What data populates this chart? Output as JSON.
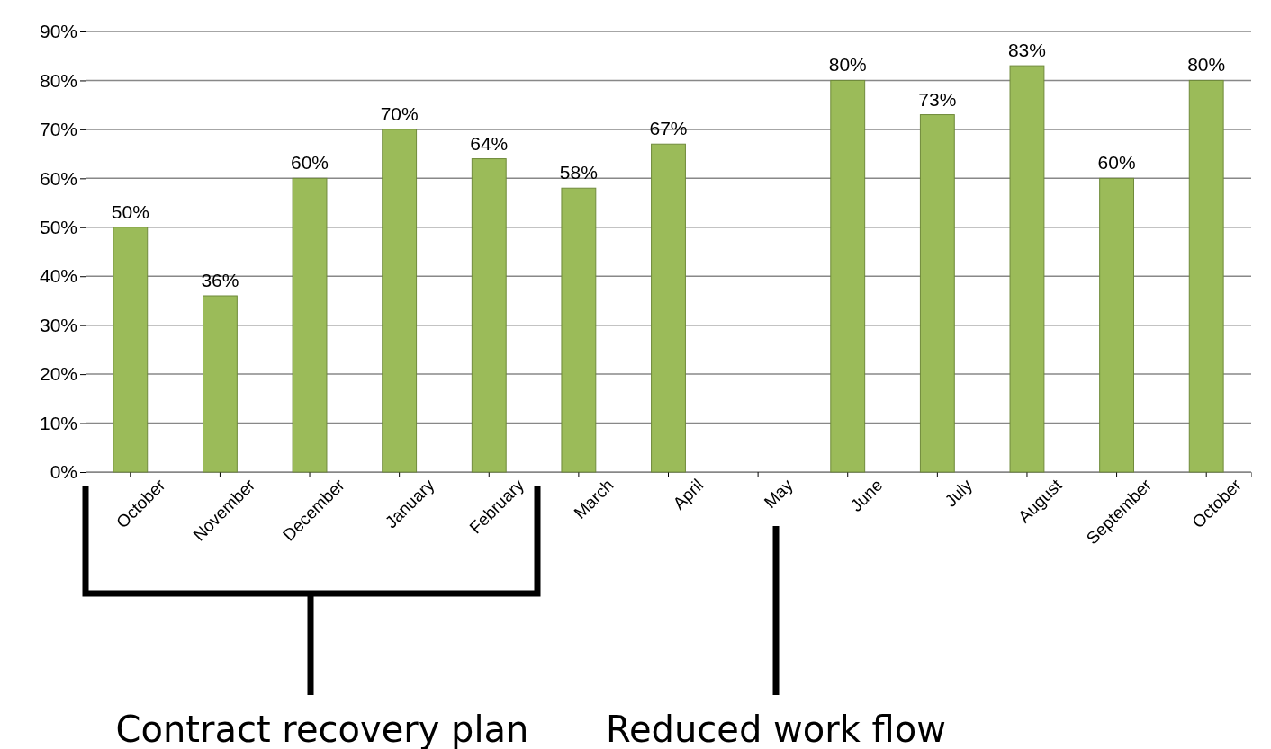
{
  "chart_data": {
    "type": "bar",
    "categories": [
      "October",
      "November",
      "December",
      "January",
      "February",
      "March",
      "April",
      "May",
      "June",
      "July",
      "August",
      "September",
      "October"
    ],
    "values": [
      50,
      36,
      60,
      70,
      64,
      58,
      67,
      null,
      80,
      73,
      83,
      60,
      80
    ],
    "value_labels": [
      "50%",
      "36%",
      "60%",
      "70%",
      "64%",
      "58%",
      "67%",
      null,
      "80%",
      "73%",
      "83%",
      "60%",
      "80%"
    ],
    "color": "#9bbb59",
    "ylim": [
      0,
      90
    ],
    "yticks": [
      {
        "value": 0,
        "label": "0%"
      },
      {
        "value": 10,
        "label": "10%"
      },
      {
        "value": 20,
        "label": "20%"
      },
      {
        "value": 30,
        "label": "30%"
      },
      {
        "value": 40,
        "label": "40%"
      },
      {
        "value": 50,
        "label": "50%"
      },
      {
        "value": 60,
        "label": "60%"
      },
      {
        "value": 70,
        "label": "70%"
      },
      {
        "value": 80,
        "label": "80%"
      },
      {
        "value": 90,
        "label": "90%"
      }
    ],
    "grid": "y",
    "annotations": [
      "Contract recovery plan",
      "Reduced work flow"
    ]
  }
}
